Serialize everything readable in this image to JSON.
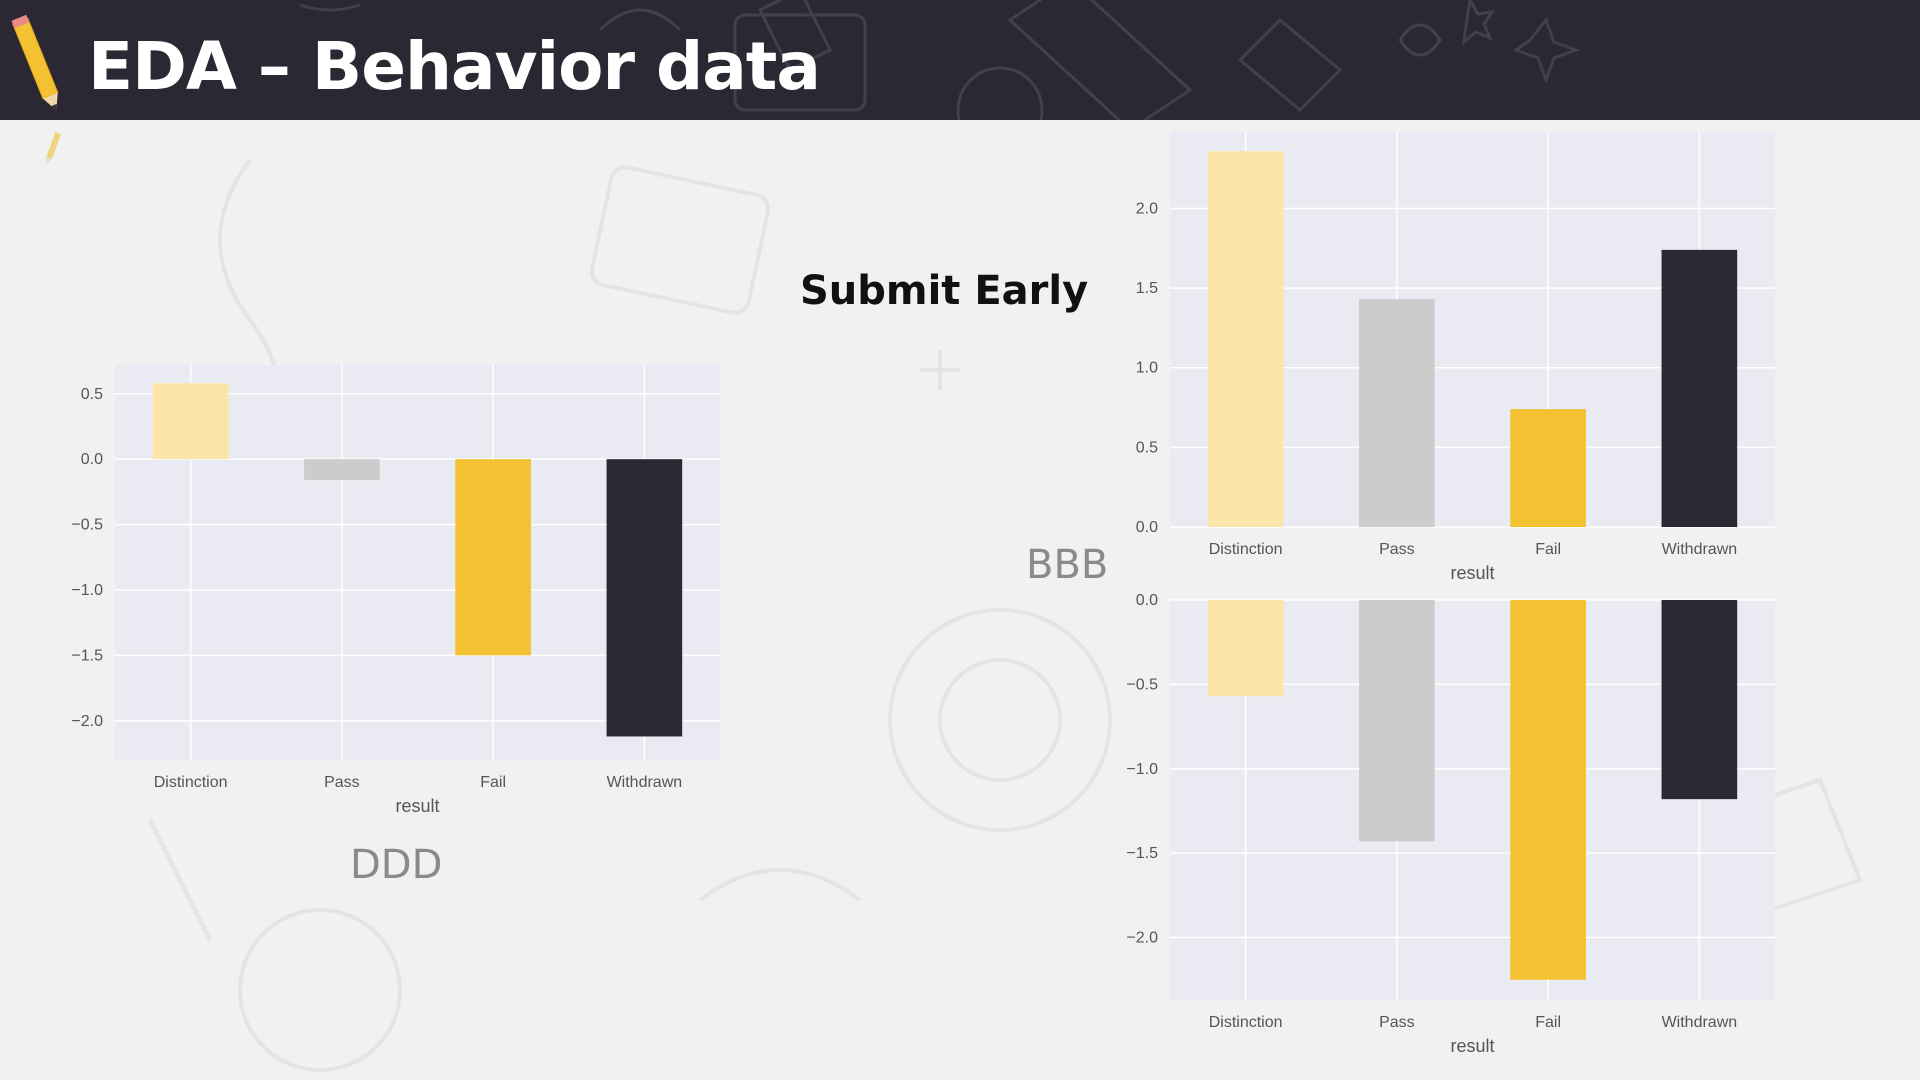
{
  "slide": {
    "title": "EDA – Behavior data",
    "heading": "Submit Early",
    "label_ddd": "DDD",
    "label_bbb": "BBB"
  },
  "colors": {
    "header_bg": "#2b2733",
    "plot_bg": "#eaeaf2",
    "grid": "#ffffff",
    "Distinction": "#fce5a8",
    "Pass": "#cccccc",
    "Fail": "#f4c132",
    "Withdrawn": "#2b2733"
  },
  "chart_data": [
    {
      "id": "ddd",
      "type": "bar",
      "categories": [
        "Distinction",
        "Pass",
        "Fail",
        "Withdrawn"
      ],
      "values": [
        0.58,
        -0.16,
        -1.5,
        -2.12
      ],
      "xlabel": "result",
      "ylabel": "",
      "ylim": [
        -2.3,
        0.72
      ],
      "yticks": [
        "0.5",
        "0.0",
        "-0.5",
        "-1.0",
        "-1.5",
        "-2.0"
      ],
      "grid": true,
      "legend": "none"
    },
    {
      "id": "bbb-top",
      "type": "bar",
      "categories": [
        "Distinction",
        "Pass",
        "Fail",
        "Withdrawn"
      ],
      "values": [
        2.36,
        1.43,
        0.74,
        1.74
      ],
      "xlabel": "result",
      "ylabel": "",
      "ylim": [
        0,
        2.48
      ],
      "yticks": [
        "0.0",
        "0.5",
        "1.0",
        "1.5",
        "2.0"
      ],
      "grid": true,
      "legend": "none"
    },
    {
      "id": "bbb-bottom",
      "type": "bar",
      "categories": [
        "Distinction",
        "Pass",
        "Fail",
        "Withdrawn"
      ],
      "values": [
        -0.57,
        -1.43,
        -2.25,
        -1.18
      ],
      "xlabel": "result",
      "ylabel": "",
      "ylim": [
        -2.37,
        0
      ],
      "yticks": [
        "0.0",
        "-0.5",
        "-1.0",
        "-1.5",
        "-2.0"
      ],
      "grid": true,
      "legend": "none"
    }
  ]
}
